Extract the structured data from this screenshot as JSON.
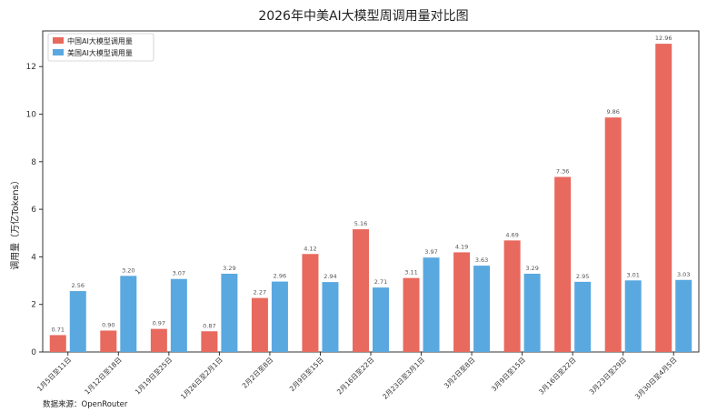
{
  "chart_data": {
    "type": "bar",
    "title": "2026年中美AI大模型周调用量对比图",
    "xlabel": "",
    "ylabel": "调用量（万亿Tokens）",
    "ylim": [
      0,
      13.5
    ],
    "yticks": [
      0,
      2,
      4,
      6,
      8,
      10,
      12
    ],
    "grid": false,
    "legend_position": "top-left",
    "categories": [
      "1月5日至11日",
      "1月12日至18日",
      "1月19日至25日",
      "1月26日至2月1日",
      "2月2日至8日",
      "2月9日至15日",
      "2月16日至22日",
      "2月23日至3月1日",
      "3月2日至8日",
      "3月9日至15日",
      "3月16日至22日",
      "3月23日至29日",
      "3月30日至4月5日"
    ],
    "series": [
      {
        "name": "中国AI大模型调用量",
        "color": "#e8695d",
        "values": [
          0.71,
          0.9,
          0.97,
          0.87,
          2.27,
          4.12,
          5.16,
          3.11,
          4.19,
          4.69,
          7.36,
          9.86,
          12.96
        ],
        "labels": [
          "0.71",
          "0.90",
          "0.97",
          "0.87",
          "2.27",
          "4.12",
          "5.16",
          "3.11",
          "4.19",
          "4.69",
          "7.36",
          "9.86",
          "12.96"
        ]
      },
      {
        "name": "美国AI大模型调用量",
        "color": "#5aa8e0",
        "values": [
          2.56,
          3.2,
          3.07,
          3.29,
          2.96,
          2.94,
          2.71,
          3.97,
          3.63,
          3.29,
          2.95,
          3.01,
          3.03
        ],
        "labels": [
          "2.56",
          "3.20",
          "3.07",
          "3.29",
          "2.96",
          "2.94",
          "2.71",
          "3.97",
          "3.63",
          "3.29",
          "2.95",
          "3.01",
          "3.03"
        ]
      }
    ]
  },
  "source_note": "数据来源：OpenRouter"
}
